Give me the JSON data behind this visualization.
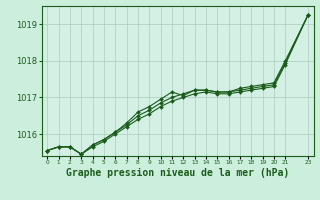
{
  "background_color": "#cceedd",
  "plot_bg_color": "#d4f0e4",
  "grid_color": "#aaccbb",
  "line_color": "#1a5c1a",
  "title": "Graphe pression niveau de la mer (hPa)",
  "title_fontsize": 7,
  "ylim": [
    1015.4,
    1019.5
  ],
  "xlim": [
    -0.5,
    23.5
  ],
  "yticks": [
    1016,
    1017,
    1018,
    1019
  ],
  "xticks": [
    0,
    1,
    2,
    3,
    4,
    5,
    6,
    7,
    8,
    9,
    10,
    11,
    12,
    13,
    14,
    15,
    16,
    17,
    18,
    19,
    20,
    21,
    23
  ],
  "series": [
    [
      1015.55,
      1015.65,
      1015.65,
      1015.45,
      1015.7,
      1015.85,
      1016.05,
      1016.3,
      1016.6,
      1016.75,
      1016.95,
      1017.15,
      1017.05,
      1017.2,
      1017.2,
      1017.15,
      1017.15,
      1017.25,
      1017.3,
      1017.35,
      1017.4,
      1018.0,
      1019.25
    ],
    [
      1015.55,
      1015.65,
      1015.65,
      1015.45,
      1015.7,
      1015.85,
      1016.05,
      1016.25,
      1016.5,
      1016.65,
      1016.85,
      1017.0,
      1017.1,
      1017.2,
      1017.2,
      1017.15,
      1017.15,
      1017.2,
      1017.25,
      1017.3,
      1017.35,
      1017.95,
      1019.25
    ],
    [
      1015.55,
      1015.65,
      1015.65,
      1015.45,
      1015.65,
      1015.8,
      1016.0,
      1016.2,
      1016.4,
      1016.55,
      1016.75,
      1016.9,
      1017.0,
      1017.1,
      1017.15,
      1017.1,
      1017.1,
      1017.15,
      1017.2,
      1017.25,
      1017.3,
      1017.9,
      1019.25
    ]
  ],
  "series_x": [
    0,
    1,
    2,
    3,
    4,
    5,
    6,
    7,
    8,
    9,
    10,
    11,
    12,
    13,
    14,
    15,
    16,
    17,
    18,
    19,
    20,
    21,
    23
  ],
  "marker": "D",
  "markersize": 2.0,
  "linewidth": 0.8
}
